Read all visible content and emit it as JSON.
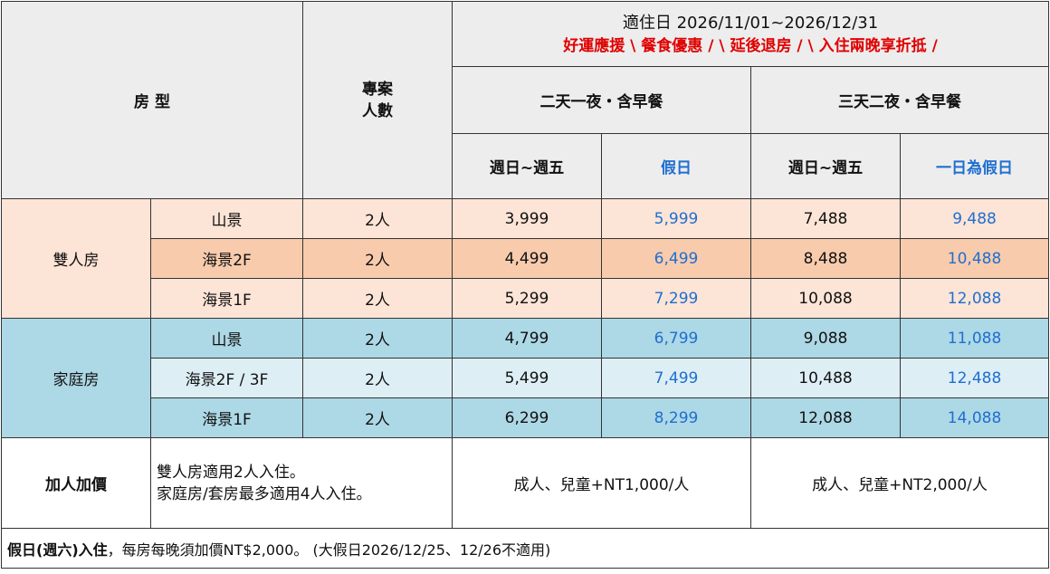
{
  "header": {
    "room_type": "房 型",
    "plan_people": "專案\n人數",
    "period": "適住日 2026/11/01~2026/12/31",
    "promo": "好運應援 \\ 餐食優惠 /  \\ 延後退房 /  \\ 入住兩晚享折抵 /",
    "plan1": "二天一夜・含早餐",
    "plan2": "三天二夜・含早餐",
    "weekday1": "週日~週五",
    "holiday1": "假日",
    "weekday2": "週日~週五",
    "holiday2": "一日為假日"
  },
  "groups": [
    {
      "name": "雙人房",
      "rows": [
        {
          "view": "山景",
          "people": "2人",
          "p1": "3,999",
          "p2": "5,999",
          "p3": "7,488",
          "p4": "9,488"
        },
        {
          "view": "海景2F",
          "people": "2人",
          "p1": "4,499",
          "p2": "6,499",
          "p3": "8,488",
          "p4": "10,488"
        },
        {
          "view": "海景1F",
          "people": "2人",
          "p1": "5,299",
          "p2": "7,299",
          "p3": "10,088",
          "p4": "12,088"
        }
      ]
    },
    {
      "name": "家庭房",
      "rows": [
        {
          "view": "山景",
          "people": "2人",
          "p1": "4,799",
          "p2": "6,799",
          "p3": "9,088",
          "p4": "11,088"
        },
        {
          "view": "海景2F / 3F",
          "people": "2人",
          "p1": "5,499",
          "p2": "7,499",
          "p3": "10,488",
          "p4": "12,488"
        },
        {
          "view": "海景1F",
          "people": "2人",
          "p1": "6,299",
          "p2": "8,299",
          "p3": "12,088",
          "p4": "14,088"
        }
      ]
    }
  ],
  "extra": {
    "label": "加人加價",
    "note_line1": "雙人房適用2人入住。",
    "note_line2": "家庭房/套房最多適用4人入住。",
    "price1": "成人、兒童+NT1,000/人",
    "price2": "成人、兒童+NT2,000/人"
  },
  "footer": {
    "bold_part": "假日(週六)入住",
    "rest": "，每房每晚須加價NT$2,000。 (大假日2026/12/25、12/26不適用)"
  },
  "colors": {
    "header_bg": "#ededed",
    "double_light": "#fce4d6",
    "double_dark": "#f8cbad",
    "family_dark": "#add8e6",
    "family_light": "#ddeef5",
    "price_blue": "#1f6fd0",
    "promo_red": "#e00000"
  }
}
